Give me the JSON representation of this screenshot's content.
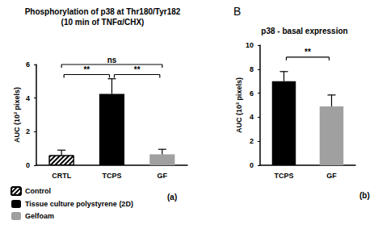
{
  "chart_data": [
    {
      "type": "bar",
      "title": "Phosphorylation of p38 at Thr180/Tyr182",
      "subtitle": "(10 min of TNFα/CHX)",
      "panel_tag": "(a)",
      "ylabel": "AUC (10³ pixels)",
      "categories": [
        "CRTL",
        "TCPS",
        "GF"
      ],
      "series": [
        {
          "name": "Control",
          "color": "#ffffff",
          "marker": "hatch",
          "values": [
            0.6,
            null,
            null
          ],
          "errors": [
            0.3,
            null,
            null
          ]
        },
        {
          "name": "Tissue culture polystyrene (2D)",
          "color": "#000000",
          "values": [
            null,
            4.25,
            null
          ],
          "errors": [
            null,
            0.9,
            null
          ]
        },
        {
          "name": "Gelfoam",
          "color": "#a0a0a0",
          "values": [
            null,
            null,
            0.65
          ],
          "errors": [
            null,
            null,
            0.3
          ]
        }
      ],
      "ylim": [
        0,
        6
      ],
      "yticks": [
        0,
        2,
        4,
        6
      ],
      "grid": false,
      "legend": "lower left",
      "annotations": [
        {
          "text": "**",
          "from": "CRTL",
          "to": "TCPS"
        },
        {
          "text": "ns",
          "from": "CRTL",
          "to": "GF"
        },
        {
          "text": "**",
          "from": "TCPS",
          "to": "GF"
        }
      ]
    },
    {
      "type": "bar",
      "panel": "B",
      "title": "p38 - basal expression",
      "panel_tag": "(b)",
      "ylabel": "AUC (10³ pixels)",
      "categories": [
        "TCPS",
        "GF"
      ],
      "values": [
        7.0,
        4.9
      ],
      "errors": [
        0.8,
        0.95
      ],
      "colors": [
        "#000000",
        "#a0a0a0"
      ],
      "ylim": [
        0,
        10
      ],
      "yticks": [
        0,
        2,
        4,
        6,
        8,
        10
      ],
      "grid": false,
      "annotations": [
        {
          "text": "**",
          "from": "TCPS",
          "to": "GF"
        }
      ]
    }
  ]
}
